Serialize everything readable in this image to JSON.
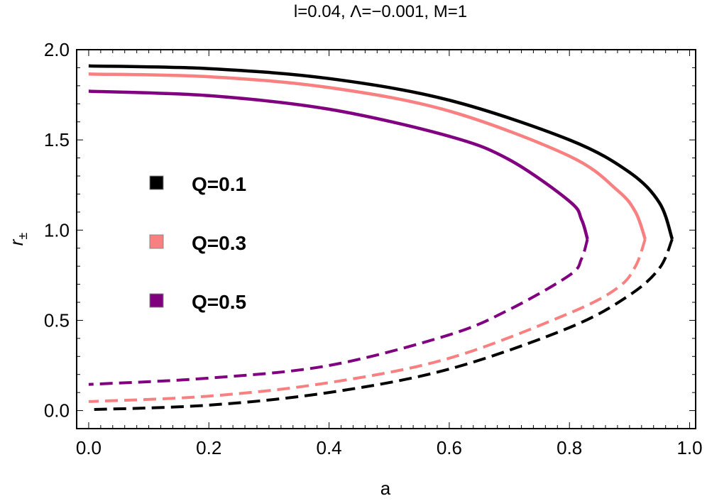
{
  "chart_data": {
    "type": "line",
    "title": "l=0.04, Λ=−0.001, M=1",
    "xlabel": "a",
    "ylabel": "r",
    "ylabel_subscript": "±",
    "xlim": [
      -0.02,
      1.01
    ],
    "ylim": [
      -0.1,
      2.0
    ],
    "xticks": [
      0.0,
      0.2,
      0.4,
      0.6,
      0.8,
      1.0
    ],
    "xtick_labels": [
      "0.0",
      "0.2",
      "0.4",
      "0.6",
      "0.8",
      "1.0"
    ],
    "yticks": [
      0.0,
      0.5,
      1.0,
      1.5,
      2.0
    ],
    "ytick_labels": [
      "0.0",
      "0.5",
      "1.0",
      "1.5",
      "2.0"
    ],
    "grid": false,
    "legend_position": "middle-left",
    "series": [
      {
        "name": "Q=0.1",
        "color": "#000000",
        "outer_solid": [
          [
            0.0,
            1.91
          ],
          [
            0.2,
            1.895
          ],
          [
            0.4,
            1.84
          ],
          [
            0.6,
            1.72
          ],
          [
            0.8,
            1.5
          ],
          [
            0.9,
            1.32
          ],
          [
            0.95,
            1.15
          ],
          [
            0.971,
            0.95
          ]
        ],
        "inner_dashed": [
          [
            0.971,
            0.95
          ],
          [
            0.95,
            0.79
          ],
          [
            0.9,
            0.64
          ],
          [
            0.8,
            0.46
          ],
          [
            0.6,
            0.23
          ],
          [
            0.4,
            0.1
          ],
          [
            0.2,
            0.03
          ],
          [
            0.0,
            0.005
          ]
        ]
      },
      {
        "name": "Q=0.3",
        "color": "#f88080",
        "outer_solid": [
          [
            0.0,
            1.865
          ],
          [
            0.2,
            1.85
          ],
          [
            0.4,
            1.79
          ],
          [
            0.6,
            1.66
          ],
          [
            0.8,
            1.41
          ],
          [
            0.88,
            1.22
          ],
          [
            0.91,
            1.1
          ],
          [
            0.926,
            0.95
          ]
        ],
        "inner_dashed": [
          [
            0.926,
            0.95
          ],
          [
            0.91,
            0.8
          ],
          [
            0.88,
            0.68
          ],
          [
            0.8,
            0.54
          ],
          [
            0.6,
            0.29
          ],
          [
            0.4,
            0.155
          ],
          [
            0.2,
            0.08
          ],
          [
            0.0,
            0.05
          ]
        ]
      },
      {
        "name": "Q=0.5",
        "color": "#800080",
        "outer_solid": [
          [
            0.0,
            1.77
          ],
          [
            0.2,
            1.745
          ],
          [
            0.4,
            1.67
          ],
          [
            0.6,
            1.52
          ],
          [
            0.7,
            1.39
          ],
          [
            0.8,
            1.16
          ],
          [
            0.82,
            1.06
          ],
          [
            0.83,
            0.95
          ]
        ],
        "inner_dashed": [
          [
            0.83,
            0.95
          ],
          [
            0.82,
            0.84
          ],
          [
            0.8,
            0.75
          ],
          [
            0.7,
            0.56
          ],
          [
            0.6,
            0.42
          ],
          [
            0.4,
            0.25
          ],
          [
            0.2,
            0.18
          ],
          [
            0.0,
            0.145
          ]
        ]
      }
    ]
  }
}
